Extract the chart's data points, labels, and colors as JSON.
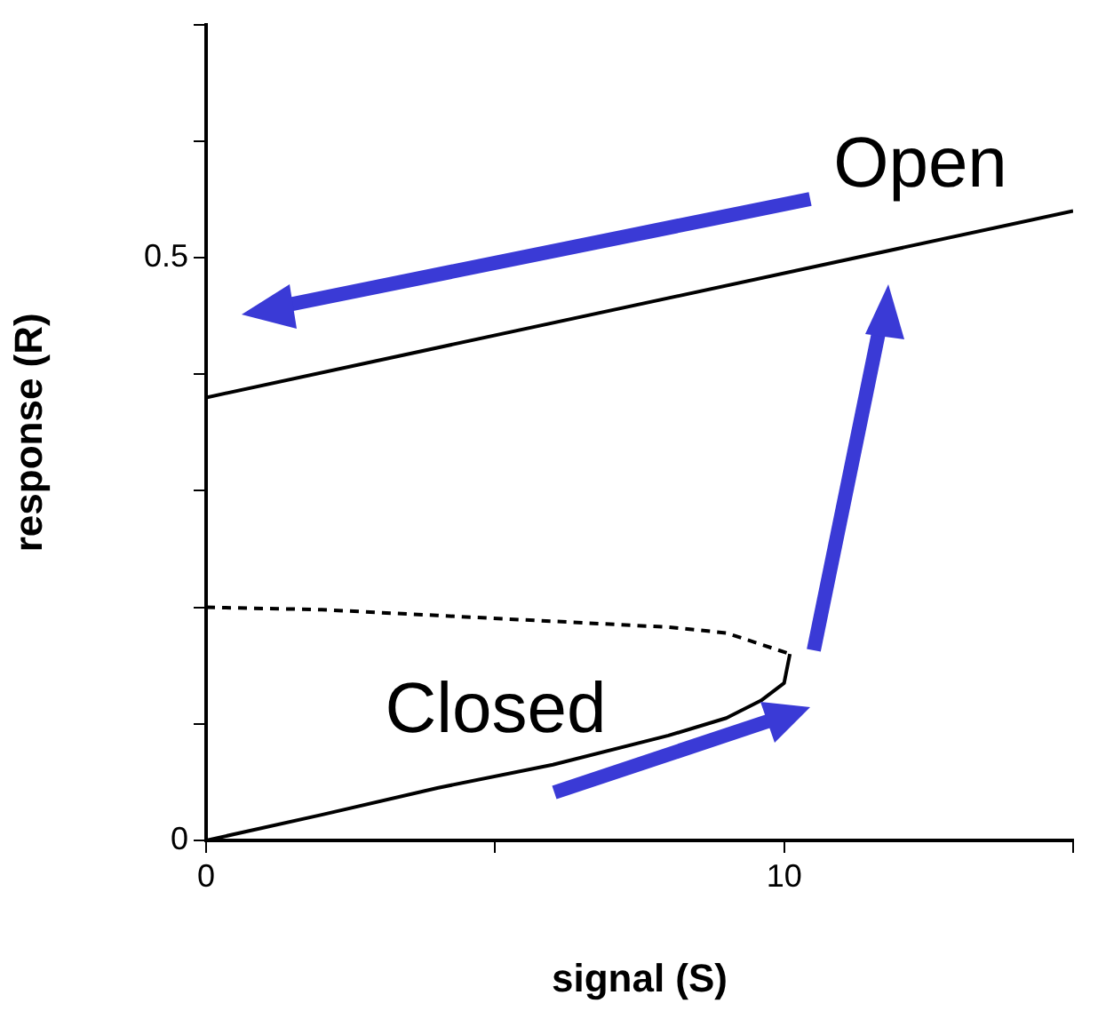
{
  "chart_data": {
    "type": "line",
    "xlabel": "signal (S)",
    "ylabel": "response (R)",
    "xlim": [
      0,
      15
    ],
    "xticks": [
      0,
      {
        "value": 5,
        "label": null
      },
      10,
      {
        "value": 15,
        "label": null
      }
    ],
    "ylim": [
      0,
      0.7
    ],
    "yticks": [
      0,
      {
        "value": 0.1,
        "label": null
      },
      {
        "value": 0.2,
        "label": null
      },
      {
        "value": 0.3,
        "label": null
      },
      {
        "value": 0.4,
        "label": null
      },
      0.5,
      {
        "value": 0.6,
        "label": null
      },
      {
        "value": 0.7,
        "label": null
      }
    ],
    "grid": false,
    "legend": false,
    "marker": "none",
    "series": [
      {
        "color": "#000000",
        "line_style": "solid",
        "x": [
          0,
          15
        ],
        "values": [
          0.38,
          0.54
        ]
      },
      {
        "color": "#000000",
        "line_style": "solid",
        "x": [
          0,
          2,
          4,
          6,
          8,
          9,
          9.6,
          10,
          10.1
        ],
        "values": [
          0,
          0.022,
          0.045,
          0.065,
          0.09,
          0.105,
          0.12,
          0.135,
          0.16
        ]
      },
      {
        "color": "#000000",
        "line_style": "dashed",
        "x": [
          0,
          2,
          4,
          6,
          8,
          9,
          10.1
        ],
        "values": [
          0.2,
          0.198,
          0.193,
          0.188,
          0.183,
          0.178,
          0.16
        ]
      }
    ],
    "annotations": [
      "Open",
      "Closed"
    ]
  }
}
